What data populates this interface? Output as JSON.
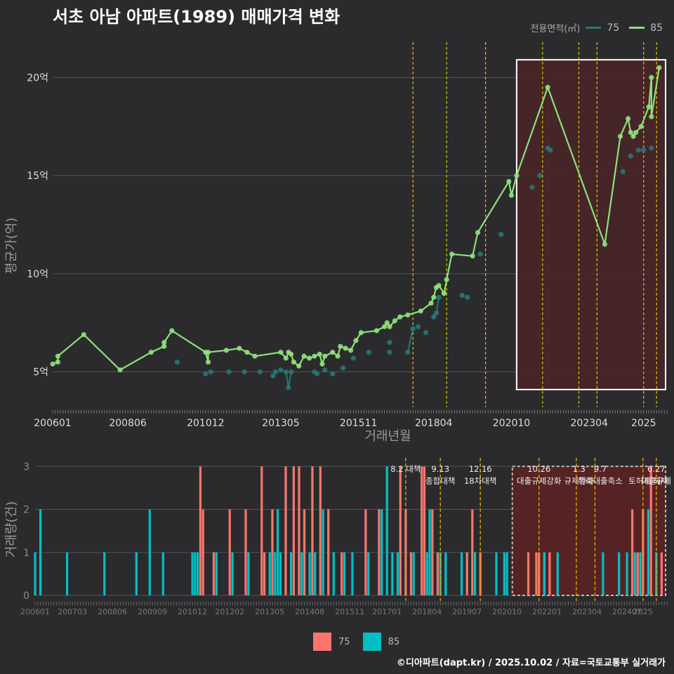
{
  "title": "서초 아남 아파트(1989) 매매가격 변화",
  "legend": {
    "title": "전용면적(㎡)",
    "items": [
      "75",
      "85"
    ]
  },
  "footer": "©디아파트(dapt.kr) / 2025.10.02 / 자료=국토교통부 실거래가",
  "colors": {
    "s75": "#26777a",
    "s85": "#8ee07a",
    "vol75": "#f8766d",
    "vol85": "#00bfc4",
    "policy": "#e0c000",
    "highlight_fill": "#4a2528",
    "bg": "#2b2b2d",
    "grid": "#555555"
  },
  "chart_data": [
    {
      "type": "line",
      "title": "서초 아남 아파트(1989) 매매가격 변화",
      "xlabel": "거래년월",
      "ylabel": "평균가(억)",
      "x_ticks": [
        "200601",
        "200806",
        "201012",
        "201305",
        "201511",
        "201804",
        "202010",
        "202304",
        "2025"
      ],
      "y_ticks": [
        {
          "v": 5,
          "label": "5억"
        },
        {
          "v": 10,
          "label": "10억"
        },
        {
          "v": 15,
          "label": "15억"
        },
        {
          "v": 20,
          "label": "20억"
        }
      ],
      "xlim": [
        "2006-01",
        "2025-10"
      ],
      "ylim": [
        3.2,
        21.8
      ],
      "highlight": {
        "x0": "2020-12",
        "x1": "2025-10",
        "y0": 4.1,
        "y1": 20.9
      },
      "policy_lines": [
        "2017-08",
        "2018-09",
        "2019-12",
        "2021-10",
        "2022-12",
        "2023-07",
        "2025-01",
        "2025-06"
      ],
      "series": [
        {
          "name": "85",
          "points": [
            [
              "2006-01",
              5.4
            ],
            [
              "2006-03",
              5.5
            ],
            [
              "2006-03",
              5.8
            ],
            [
              "2007-01",
              6.9
            ],
            [
              "2008-03",
              5.1
            ],
            [
              "2009-03",
              6.0
            ],
            [
              "2009-08",
              6.3
            ],
            [
              "2009-08",
              6.5
            ],
            [
              "2009-11",
              7.1
            ],
            [
              "2010-12",
              6.0
            ],
            [
              "2011-01",
              5.5
            ],
            [
              "2011-01",
              6.0
            ],
            [
              "2011-08",
              6.1
            ],
            [
              "2012-01",
              6.2
            ],
            [
              "2012-04",
              6.0
            ],
            [
              "2012-07",
              5.8
            ],
            [
              "2013-05",
              6.0
            ],
            [
              "2013-07",
              5.7
            ],
            [
              "2013-08",
              6.0
            ],
            [
              "2013-09",
              5.9
            ],
            [
              "2013-10",
              5.5
            ],
            [
              "2013-12",
              5.3
            ],
            [
              "2014-02",
              5.8
            ],
            [
              "2014-04",
              5.7
            ],
            [
              "2014-06",
              5.8
            ],
            [
              "2014-08",
              5.9
            ],
            [
              "2014-09",
              5.4
            ],
            [
              "2014-10",
              5.8
            ],
            [
              "2015-01",
              6.0
            ],
            [
              "2015-03",
              5.8
            ],
            [
              "2015-04",
              6.3
            ],
            [
              "2015-06",
              6.2
            ],
            [
              "2015-08",
              6.1
            ],
            [
              "2015-10",
              6.6
            ],
            [
              "2015-12",
              7.0
            ],
            [
              "2016-06",
              7.1
            ],
            [
              "2016-09",
              7.3
            ],
            [
              "2016-10",
              7.5
            ],
            [
              "2016-11",
              7.3
            ],
            [
              "2017-01",
              7.6
            ],
            [
              "2017-03",
              7.8
            ],
            [
              "2017-06",
              7.9
            ],
            [
              "2017-11",
              8.1
            ],
            [
              "2018-03",
              8.5
            ],
            [
              "2018-04",
              8.8
            ],
            [
              "2018-05",
              9.3
            ],
            [
              "2018-06",
              9.4
            ],
            [
              "2018-08",
              9.0
            ],
            [
              "2018-09",
              9.7
            ],
            [
              "2018-11",
              11.0
            ],
            [
              "2019-07",
              10.9
            ],
            [
              "2019-09",
              12.1
            ],
            [
              "2020-09",
              14.7
            ],
            [
              "2020-10",
              14.0
            ],
            [
              "2020-12",
              15.0
            ],
            [
              "2021-12",
              19.5
            ],
            [
              "2023-10",
              11.5
            ],
            [
              "2024-04",
              17.0
            ],
            [
              "2024-07",
              17.9
            ],
            [
              "2024-08",
              17.2
            ],
            [
              "2024-09",
              17.0
            ],
            [
              "2024-10",
              17.2
            ],
            [
              "2024-12",
              17.5
            ],
            [
              "2025-03",
              18.5
            ],
            [
              "2025-04",
              20.0
            ],
            [
              "2025-04",
              18.0
            ],
            [
              "2025-07",
              20.5
            ]
          ]
        },
        {
          "name": "75",
          "points": [
            [
              "2010-01",
              5.5
            ],
            [
              "2010-12",
              4.9
            ],
            [
              "2011-02",
              5.0
            ],
            [
              "2011-09",
              5.0
            ],
            [
              "2012-03",
              5.0
            ],
            [
              "2012-09",
              5.0
            ],
            [
              "2013-02",
              4.8
            ],
            [
              "2013-03",
              5.0
            ],
            [
              "2013-05",
              5.1
            ],
            [
              "2013-07",
              5.0
            ],
            [
              "2013-08",
              4.2
            ],
            [
              "2013-09",
              5.0
            ],
            [
              "2014-06",
              5.0
            ],
            [
              "2014-07",
              4.9
            ],
            [
              "2014-10",
              5.1
            ],
            [
              "2015-01",
              4.9
            ],
            [
              "2015-05",
              5.2
            ],
            [
              "2015-09",
              5.7
            ],
            [
              "2016-03",
              6.0
            ],
            [
              "2016-11",
              6.0
            ],
            [
              "2016-11",
              6.5
            ],
            [
              "2017-06",
              6.0
            ],
            [
              "2017-08",
              7.2
            ],
            [
              "2017-10",
              7.3
            ],
            [
              "2018-01",
              7.0
            ],
            [
              "2018-04",
              7.8
            ],
            [
              "2018-05",
              8.0
            ],
            [
              "2018-06",
              8.8
            ],
            [
              "2018-08",
              9.0
            ],
            [
              "2019-03",
              8.9
            ],
            [
              "2019-05",
              8.8
            ],
            [
              "2019-10",
              11.0
            ],
            [
              "2020-06",
              12.0
            ],
            [
              "2021-06",
              14.4
            ],
            [
              "2021-09",
              15.0
            ],
            [
              "2021-12",
              16.4
            ],
            [
              "2022-01",
              16.3
            ],
            [
              "2024-05",
              15.2
            ],
            [
              "2024-08",
              16.0
            ],
            [
              "2024-11",
              16.3
            ],
            [
              "2025-01",
              16.3
            ],
            [
              "2025-04",
              16.4
            ]
          ]
        }
      ]
    },
    {
      "type": "bar",
      "ylabel": "거래량(건)",
      "y_ticks": [
        0,
        1,
        2,
        3
      ],
      "ylim": [
        0,
        3.2
      ],
      "x_ticks": [
        "200601",
        "200703",
        "200806",
        "200909",
        "201012",
        "201202",
        "201305",
        "201408",
        "201511",
        "201701",
        "201804",
        "201907",
        "202010",
        "202201",
        "202304",
        "202407",
        "2025"
      ],
      "highlight": {
        "x0": "2020-12",
        "x1": "2025-10"
      },
      "policy_lines": [
        "2017-08",
        "2018-09",
        "2019-12",
        "2021-10",
        "2022-12",
        "2023-07",
        "2025-01",
        "2025-06"
      ],
      "annotations": [
        {
          "x": "2017-08",
          "lines": [
            "8.2 대책"
          ]
        },
        {
          "x": "2018-09",
          "lines": [
            "9.13",
            "종합대책"
          ]
        },
        {
          "x": "2019-12",
          "lines": [
            "12.16",
            "18차대책"
          ]
        },
        {
          "x": "2021-10",
          "lines": [
            "10.26",
            "대출규제강화"
          ]
        },
        {
          "x": "2023-01",
          "lines": [
            "1.3",
            "규제완화"
          ]
        },
        {
          "x": "2023-09",
          "lines": [
            "9.7",
            "특례대출축소"
          ]
        },
        {
          "x": "2025-06",
          "lines": [
            "6.27",
            "대출규제"
          ]
        },
        {
          "x": "2025-03",
          "lines": [
            "",
            "토허제 해제"
          ]
        }
      ],
      "series": [
        {
          "name": "75",
          "bars": [
            [
              "2011-03",
              3
            ],
            [
              "2011-04",
              2
            ],
            [
              "2011-08",
              1
            ],
            [
              "2012-02",
              2
            ],
            [
              "2012-08",
              2
            ],
            [
              "2013-02",
              3
            ],
            [
              "2013-03",
              1
            ],
            [
              "2013-06",
              2
            ],
            [
              "2013-11",
              3
            ],
            [
              "2014-02",
              3
            ],
            [
              "2014-04",
              3
            ],
            [
              "2014-06",
              2
            ],
            [
              "2014-09",
              3
            ],
            [
              "2014-12",
              3
            ],
            [
              "2015-03",
              2
            ],
            [
              "2015-08",
              1
            ],
            [
              "2016-05",
              2
            ],
            [
              "2016-10",
              2
            ],
            [
              "2017-06",
              3
            ],
            [
              "2017-08",
              2
            ],
            [
              "2017-10",
              1
            ],
            [
              "2018-02",
              3
            ],
            [
              "2018-03",
              3
            ],
            [
              "2018-06",
              2
            ],
            [
              "2018-08",
              1
            ],
            [
              "2019-07",
              1
            ],
            [
              "2019-09",
              2
            ],
            [
              "2019-12",
              1
            ],
            [
              "2021-06",
              1
            ],
            [
              "2021-09",
              1
            ],
            [
              "2021-10",
              1
            ],
            [
              "2021-12",
              1
            ],
            [
              "2022-02",
              1
            ],
            [
              "2024-09",
              2
            ],
            [
              "2024-11",
              1
            ],
            [
              "2025-01",
              2
            ],
            [
              "2025-04",
              3
            ],
            [
              "2025-08",
              1
            ]
          ]
        },
        {
          "name": "85",
          "bars": [
            [
              "2006-01",
              1
            ],
            [
              "2006-03",
              2
            ],
            [
              "2007-01",
              1
            ],
            [
              "2008-03",
              1
            ],
            [
              "2009-03",
              1
            ],
            [
              "2009-08",
              2
            ],
            [
              "2010-01",
              1
            ],
            [
              "2010-12",
              1
            ],
            [
              "2011-01",
              1
            ],
            [
              "2011-02",
              1
            ],
            [
              "2011-09",
              1
            ],
            [
              "2012-03",
              1
            ],
            [
              "2012-09",
              1
            ],
            [
              "2013-05",
              1
            ],
            [
              "2013-07",
              1
            ],
            [
              "2013-08",
              2
            ],
            [
              "2013-09",
              1
            ],
            [
              "2014-01",
              1
            ],
            [
              "2014-05",
              1
            ],
            [
              "2014-08",
              1
            ],
            [
              "2014-10",
              1
            ],
            [
              "2015-01",
              2
            ],
            [
              "2015-05",
              1
            ],
            [
              "2015-09",
              1
            ],
            [
              "2015-12",
              1
            ],
            [
              "2016-06",
              1
            ],
            [
              "2016-11",
              2
            ],
            [
              "2017-01",
              3
            ],
            [
              "2017-03",
              1
            ],
            [
              "2017-05",
              1
            ],
            [
              "2017-11",
              1
            ],
            [
              "2018-04",
              1
            ],
            [
              "2018-05",
              2
            ],
            [
              "2018-09",
              1
            ],
            [
              "2018-11",
              1
            ],
            [
              "2019-05",
              1
            ],
            [
              "2019-10",
              1
            ],
            [
              "2020-06",
              1
            ],
            [
              "2020-09",
              1
            ],
            [
              "2020-10",
              1
            ],
            [
              "2021-12",
              1
            ],
            [
              "2022-05",
              1
            ],
            [
              "2023-10",
              1
            ],
            [
              "2024-04",
              1
            ],
            [
              "2024-07",
              1
            ],
            [
              "2024-10",
              1
            ],
            [
              "2024-12",
              1
            ],
            [
              "2025-03",
              2
            ],
            [
              "2025-06",
              1
            ]
          ]
        }
      ]
    }
  ]
}
